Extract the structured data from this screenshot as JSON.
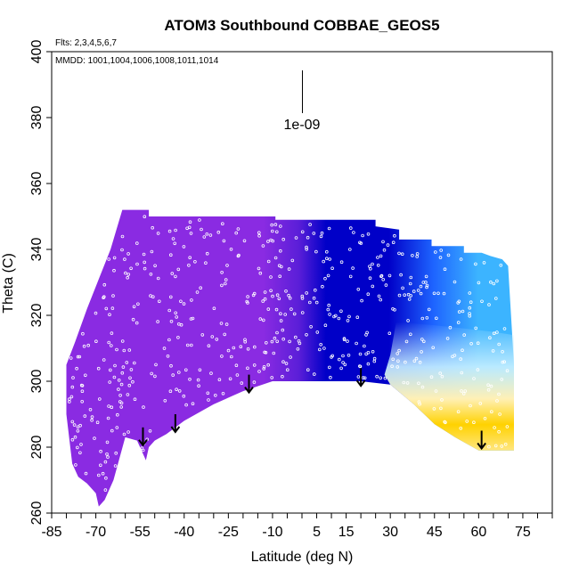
{
  "chart_data": {
    "type": "heatmap",
    "title": "ATOM3 Southbound COBBAE_GEOS5",
    "xlabel": "Latitude (deg N)",
    "ylabel": "Theta (C)",
    "xlim": [
      -85,
      85
    ],
    "ylim": [
      260,
      400
    ],
    "x_ticks": [
      -85,
      -70,
      -55,
      -40,
      -25,
      -10,
      5,
      15,
      30,
      45,
      60,
      75
    ],
    "y_ticks": [
      260,
      280,
      300,
      320,
      340,
      360,
      380,
      400
    ],
    "flights_note": "Flts: 2,3,4,5,6,7",
    "dates_note": "MMDD: 1001,1004,1006,1008,1011,1014",
    "scale_label": "1e-09",
    "colors": {
      "purple": "#8a2be2",
      "dark_blue": "#0000c8",
      "blue": "#1e64ff",
      "sky_blue": "#3cb4ff",
      "light_blue": "#c8f0ff",
      "pale_yellow": "#fff0b4",
      "yellow": "#ffd200",
      "dot": "#ffffff",
      "arrow": "#000000"
    },
    "tropopause_arrows": [
      {
        "lat": -54,
        "theta": 286
      },
      {
        "lat": -43,
        "theta": 290
      },
      {
        "lat": -18,
        "theta": 302
      },
      {
        "lat": 20,
        "theta": 304
      },
      {
        "lat": 61,
        "theta": 285
      }
    ]
  }
}
